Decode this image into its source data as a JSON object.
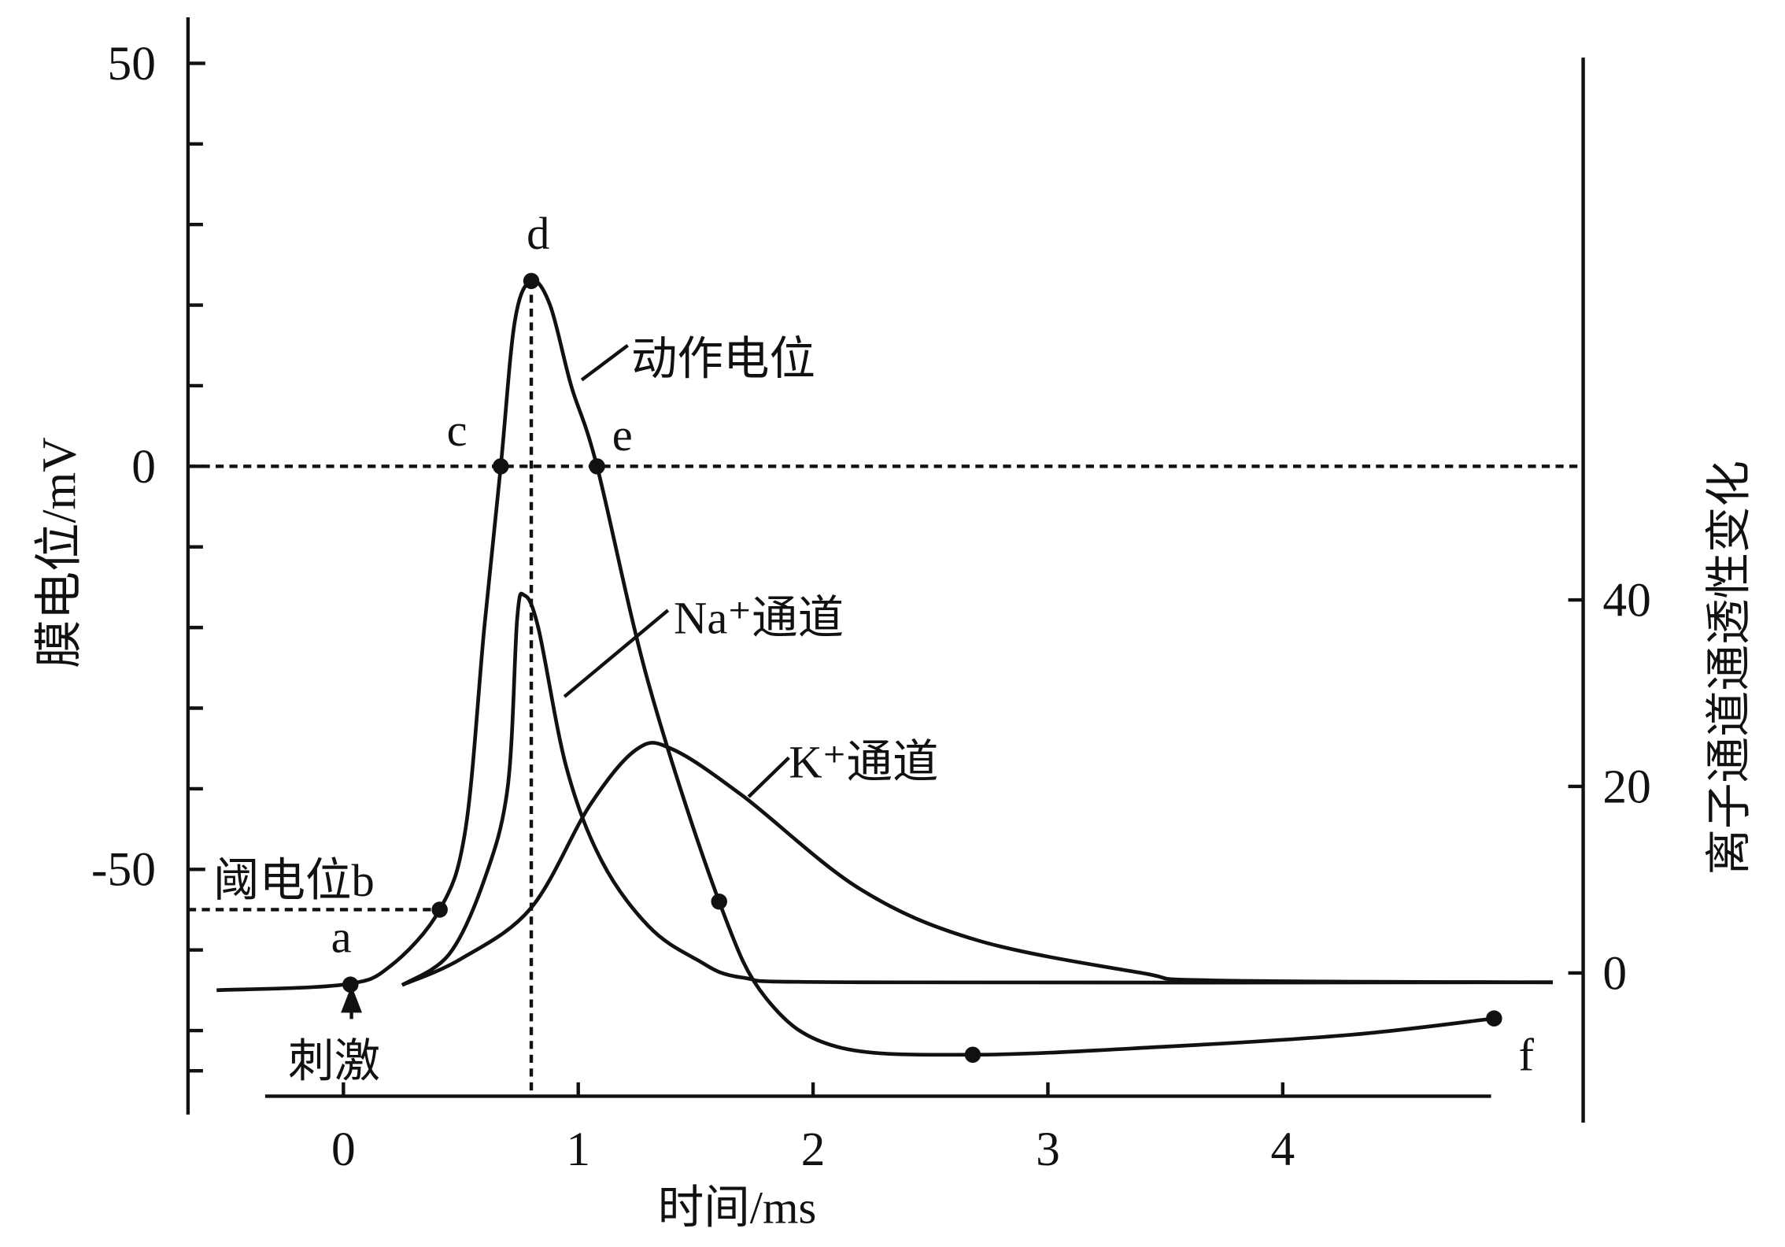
{
  "chart_data": {
    "type": "line",
    "xlabel": "时间/ms",
    "ylabel_left": "膜电位/mV",
    "ylabel_right": "离子通道通透性变化",
    "xlim": [
      -0.54,
      5.15
    ],
    "ylim_left": [
      -80,
      50
    ],
    "ylim_right": [
      -10,
      100
    ],
    "x_ticks": [
      "0",
      "1",
      "2",
      "3",
      "4"
    ],
    "x_tick_values": [
      0,
      1,
      2,
      3,
      4
    ],
    "left_ticks": [
      "50",
      "0",
      "-50"
    ],
    "left_tick_values": [
      50,
      0,
      -50
    ],
    "left_minor_ticks": [
      40,
      30,
      20,
      10,
      -10,
      -20,
      -30,
      -40,
      -60,
      -70,
      -75
    ],
    "right_ticks": [
      "40",
      "20",
      "0"
    ],
    "right_tick_values": [
      40,
      20,
      0
    ],
    "threshold_mV": -55,
    "threshold_label": "阈电位b",
    "stimulus_label": "刺激",
    "stimulus_time": 0.03,
    "series": [
      {
        "name": "动作电位",
        "axis": "left",
        "points": [
          [
            -0.54,
            -65
          ],
          [
            0,
            -64.3
          ],
          [
            0.2,
            -62
          ],
          [
            0.41,
            -55
          ],
          [
            0.52,
            -45
          ],
          [
            0.6,
            -20
          ],
          [
            0.67,
            0
          ],
          [
            0.73,
            18
          ],
          [
            0.8,
            23
          ],
          [
            0.88,
            20
          ],
          [
            0.97,
            10
          ],
          [
            1.08,
            0
          ],
          [
            1.3,
            -27
          ],
          [
            1.6,
            -54
          ],
          [
            1.8,
            -66
          ],
          [
            2.1,
            -72
          ],
          [
            2.68,
            -73
          ],
          [
            3.5,
            -72
          ],
          [
            4.3,
            -70.5
          ],
          [
            4.9,
            -68.5
          ]
        ]
      },
      {
        "name": "Na⁺通道",
        "axis": "right",
        "points": [
          [
            0.25,
            -1.3
          ],
          [
            0.45,
            2
          ],
          [
            0.6,
            10
          ],
          [
            0.7,
            20
          ],
          [
            0.74,
            38
          ],
          [
            0.77,
            40.5
          ],
          [
            0.83,
            37
          ],
          [
            0.95,
            22
          ],
          [
            1.1,
            12
          ],
          [
            1.3,
            5
          ],
          [
            1.5,
            1.5
          ],
          [
            1.7,
            -0.5
          ],
          [
            2.2,
            -1
          ],
          [
            5.15,
            -1
          ]
        ]
      },
      {
        "name": "K⁺通道",
        "axis": "right",
        "points": [
          [
            0.25,
            -1.3
          ],
          [
            0.5,
            1.5
          ],
          [
            0.8,
            7
          ],
          [
            1.05,
            18
          ],
          [
            1.25,
            24
          ],
          [
            1.4,
            24
          ],
          [
            1.7,
            19
          ],
          [
            2.2,
            9
          ],
          [
            2.7,
            3.5
          ],
          [
            3.4,
            0
          ],
          [
            3.7,
            -0.8
          ],
          [
            5.15,
            -1
          ]
        ]
      }
    ],
    "marked_points": [
      {
        "label": "a",
        "t": 0.03,
        "mV": -64.3
      },
      {
        "label": "b",
        "t": 0.41,
        "mV": -55
      },
      {
        "label": "c",
        "t": 0.67,
        "mV": 0
      },
      {
        "label": "d",
        "t": 0.8,
        "mV": 23
      },
      {
        "label": "e",
        "t": 1.08,
        "mV": 0
      },
      {
        "label": "",
        "t": 1.6,
        "mV": -54
      },
      {
        "label": "",
        "t": 2.68,
        "mV": -73
      },
      {
        "label": "f",
        "t": 4.9,
        "mV": -68.5
      }
    ],
    "annotations": {
      "ap": "动作电位",
      "na": "Na⁺通道",
      "k": "K⁺通道"
    }
  }
}
